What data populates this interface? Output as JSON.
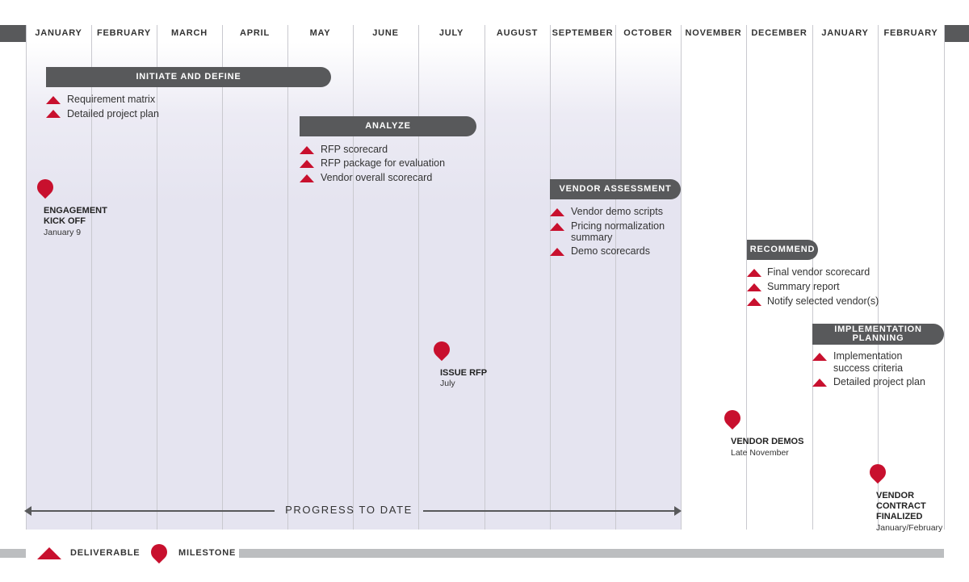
{
  "colors": {
    "accent": "#c8102e",
    "bar": "#58595b",
    "progress_fill": "#e5e4f0",
    "legend_bar": "#bcbec0"
  },
  "months": [
    "JANUARY",
    "FEBRUARY",
    "MARCH",
    "APRIL",
    "MAY",
    "JUNE",
    "JULY",
    "AUGUST",
    "SEPTEMBER",
    "OCTOBER",
    "NOVEMBER",
    "DECEMBER",
    "JANUARY",
    "FEBRUARY"
  ],
  "phases": [
    {
      "label": "INITIATE AND DEFINE",
      "deliverables": [
        "Requirement matrix",
        "Detailed project plan"
      ]
    },
    {
      "label": "ANALYZE",
      "deliverables": [
        "RFP scorecard",
        "RFP package for evaluation",
        "Vendor overall scorecard"
      ]
    },
    {
      "label": "VENDOR ASSESSMENT",
      "deliverables": [
        "Vendor demo scripts",
        "Pricing normalization",
        "summary",
        "Demo scorecards"
      ]
    },
    {
      "label": "RECOMMEND",
      "deliverables": [
        "Final vendor scorecard",
        "Summary report",
        "Notify selected vendor(s)"
      ]
    },
    {
      "label_line1": "IMPLEMENTATION",
      "label_line2": "PLANNING",
      "deliverables": [
        "Implementation",
        "success criteria",
        "Detailed project plan"
      ]
    }
  ],
  "milestones": [
    {
      "title_line1": "ENGAGEMENT",
      "title_line2": "KICK OFF",
      "date": "January 9"
    },
    {
      "title_line1": "ISSUE RFP",
      "date": "July"
    },
    {
      "title_line1": "VENDOR DEMOS",
      "date": "Late November"
    },
    {
      "title_line1": "VENDOR",
      "title_line2": "CONTRACT",
      "title_line3": "FINALIZED",
      "date": "January/February"
    }
  ],
  "progress_label": "PROGRESS TO DATE",
  "legend": {
    "deliverable": "DELIVERABLE",
    "milestone": "MILESTONE"
  }
}
